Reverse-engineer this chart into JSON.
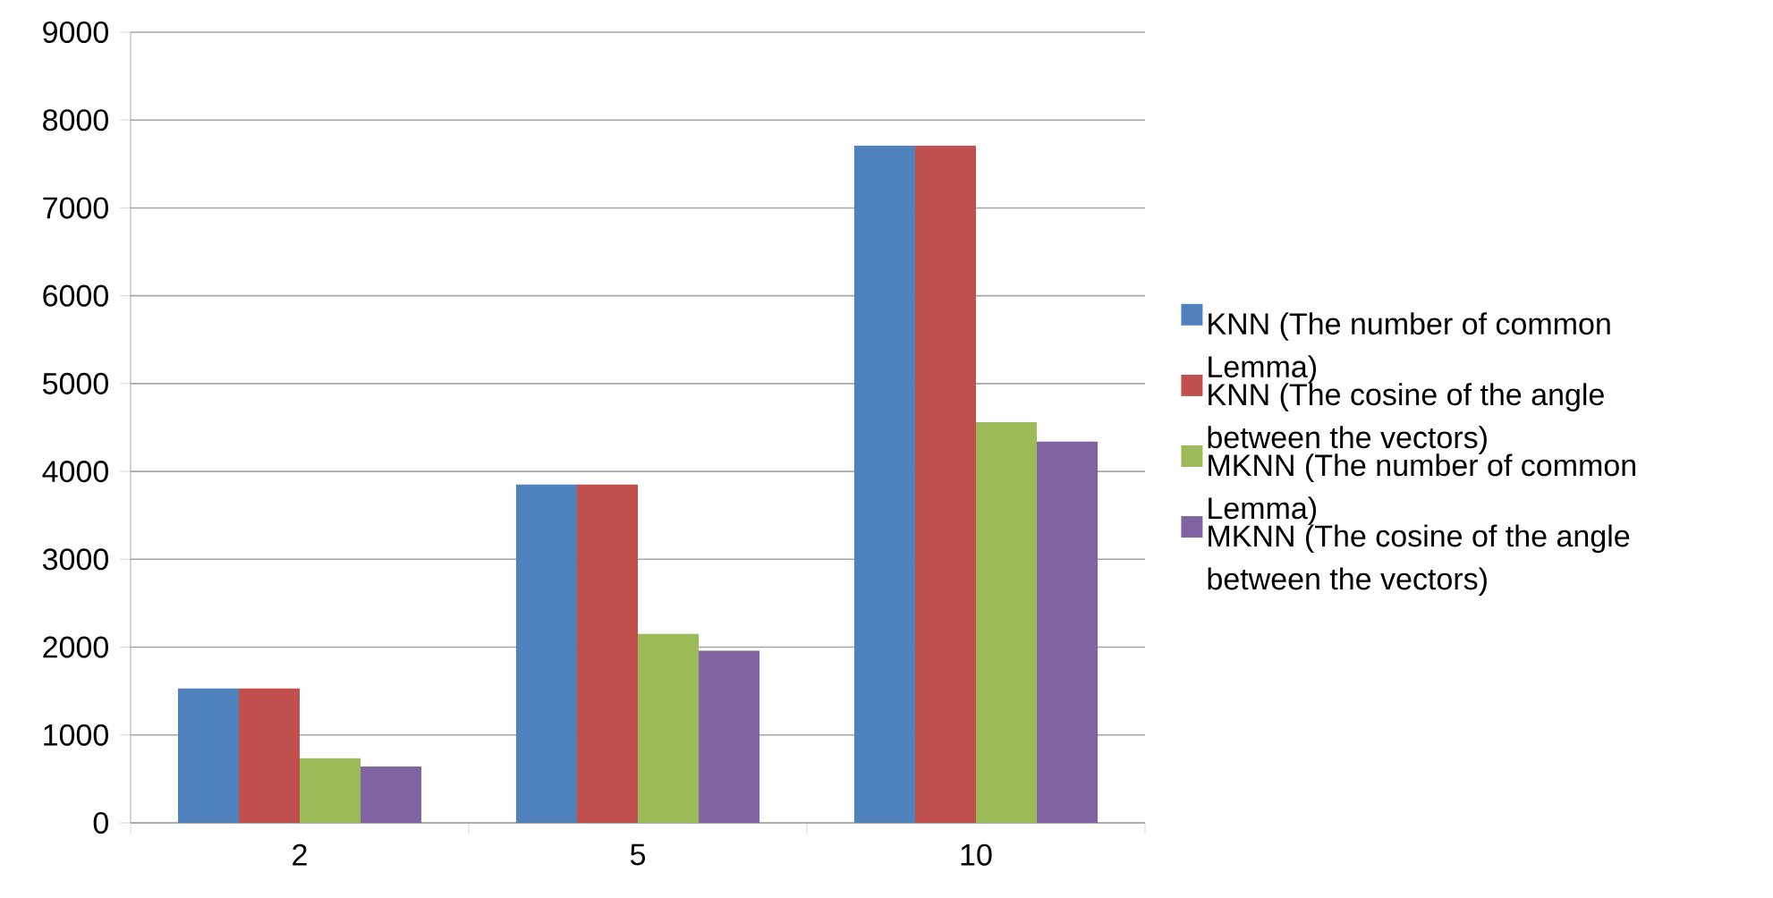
{
  "chart_data": {
    "type": "bar",
    "categories": [
      "2",
      "5",
      "10"
    ],
    "series": [
      {
        "name": "KNN (The number of common Lemma)",
        "color": "#4f81bd",
        "values": [
          1530,
          3850,
          7710
        ]
      },
      {
        "name": "KNN (The cosine of the angle between the vectors)",
        "color": "#c0504d",
        "values": [
          1530,
          3850,
          7710
        ]
      },
      {
        "name": "MKNN (The number of common Lemma)",
        "color": "#9bbb59",
        "values": [
          735,
          2150,
          4560
        ]
      },
      {
        "name": "MKNN (The cosine of the angle between the vectors)",
        "color": "#8064a2",
        "values": [
          640,
          1960,
          4340
        ]
      }
    ],
    "ylim": [
      0,
      9000
    ],
    "yticks": [
      0,
      1000,
      2000,
      3000,
      4000,
      5000,
      6000,
      7000,
      8000,
      9000
    ],
    "grid": "y",
    "legend": "right"
  }
}
